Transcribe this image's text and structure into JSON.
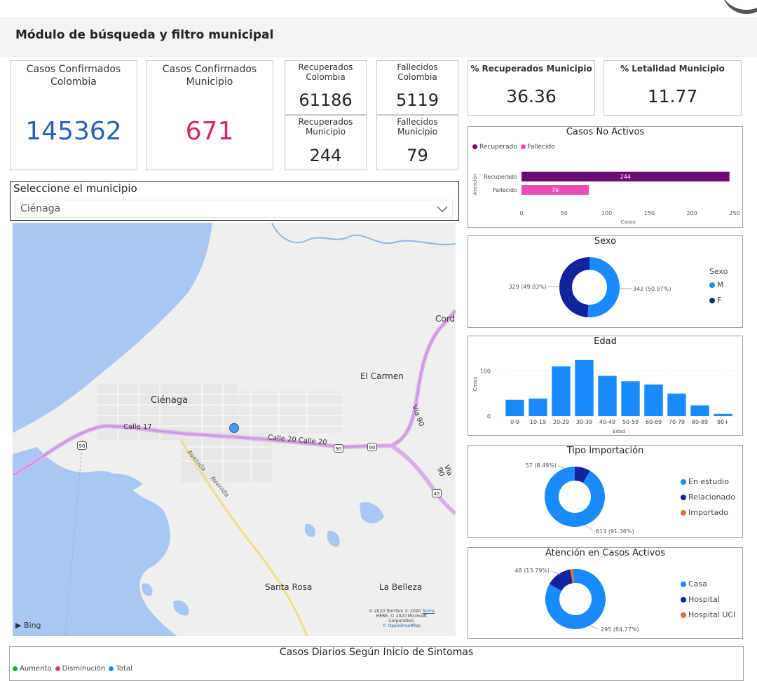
{
  "header": {
    "title": "Módulo de búsqueda y filtro municipal"
  },
  "kpis": {
    "confirmados_colombia": {
      "label": "Casos Confirmados Colombia",
      "value": "145362",
      "color": "#2b5fb4"
    },
    "confirmados_municipio": {
      "label": "Casos Confirmados Municipio",
      "value": "671",
      "color": "#d6246e"
    },
    "recuperados_colombia": {
      "label": "Recuperados Colombia",
      "value": "61186"
    },
    "fallecidos_colombia": {
      "label": "Fallecidos Colombia",
      "value": "5119"
    },
    "recuperados_municipio": {
      "label": "Recuperados Municipio",
      "value": "244"
    },
    "fallecidos_municipio": {
      "label": "Fallecidos Municipio",
      "value": "79"
    },
    "pct_recuperados": {
      "label": "% Recuperados Municipio",
      "value": "36.36"
    },
    "pct_letalidad": {
      "label": "% Letalidad Municipio",
      "value": "11.77"
    }
  },
  "slicer": {
    "title": "Seleccione el municipio",
    "selected": "Ciénaga"
  },
  "map": {
    "labels": {
      "cienaga": "Ciénaga",
      "el_carmen": "El Carmen",
      "cord": "Cord",
      "santa_rosa": "Santa Rosa",
      "la_belleza": "La Belleza",
      "calle17": "Calle 17",
      "calle20": "Calle 20 Calle 20",
      "via90a": "Vía 90",
      "via90b": "Vía 90",
      "avenida1": "Avenida",
      "avenida2": "Avenida",
      "shield90a": "90",
      "shield90b": "90",
      "shield90c": "90",
      "shield45": "45"
    },
    "bing": "Bing",
    "attribution1": "© 2020 TomTom © 2020",
    "terms": "Terms",
    "attribution2": "HERE, © 2020 Microsoft",
    "attribution3": "Corporation,",
    "attribution4": "© OpenStreetMap"
  },
  "chart_data": [
    {
      "type": "bar",
      "title": "Casos No Activos",
      "orientation": "horizontal",
      "categories": [
        "Recuperado",
        "Fallecido"
      ],
      "values": [
        244,
        79
      ],
      "colors": [
        "#6b0a73",
        "#e84fb5"
      ],
      "legend": [
        "Recuperado",
        "Fallecido"
      ],
      "ylabel": "Atención",
      "xlabel": "Casos",
      "xticks": [
        "0",
        "50",
        "100",
        "150",
        "200",
        "250"
      ],
      "xlim": [
        0,
        250
      ]
    },
    {
      "type": "pie",
      "title": "Sexo",
      "legend_title": "Sexo",
      "categories": [
        "M",
        "F"
      ],
      "values": [
        342,
        329
      ],
      "labels": [
        "342 (50.97%)",
        "329 (49.03%)"
      ],
      "colors": [
        "#1a8bff",
        "#12239e"
      ]
    },
    {
      "type": "bar",
      "title": "Edad",
      "categories": [
        "0-9",
        "10-19",
        "20-29",
        "30-39",
        "40-49",
        "50-59",
        "60-69",
        "70-79",
        "80-89",
        "90+"
      ],
      "values": [
        36,
        39,
        110,
        124,
        89,
        77,
        70,
        50,
        24,
        5
      ],
      "ylabel": "Casos",
      "xlabel": "Edad",
      "yticks": [
        "0",
        "100"
      ],
      "ylim": [
        0,
        130
      ],
      "color": "#1a8bff"
    },
    {
      "type": "pie",
      "title": "Tipo Importación",
      "categories": [
        "En estudio",
        "Relacionado",
        "Importado"
      ],
      "values": [
        613,
        57,
        0
      ],
      "labels": [
        "613 (91.36%)",
        "57 (8.49%)"
      ],
      "colors": [
        "#1a8bff",
        "#12239e",
        "#e66c37"
      ]
    },
    {
      "type": "pie",
      "title": "Atención en Casos Activos",
      "categories": [
        "Casa",
        "Hospital",
        "Hospital UCI"
      ],
      "values": [
        295,
        48,
        5
      ],
      "labels": [
        "295 (84.77%)",
        "48 (13.79%)"
      ],
      "colors": [
        "#1a8bff",
        "#12239e",
        "#e66c37"
      ]
    },
    {
      "type": "line",
      "title": "Casos Diarios Según Inicio de Sintomas",
      "legend": [
        "Aumento",
        "Disminución",
        "Total"
      ],
      "colors": [
        "#1aab40",
        "#d64550",
        "#1a8bff"
      ]
    }
  ]
}
